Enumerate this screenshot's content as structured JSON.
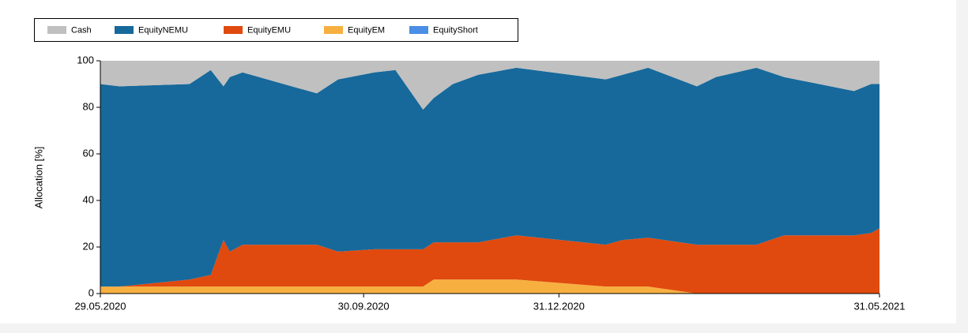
{
  "chart_data": {
    "type": "stacked_area",
    "y_label": "Allocation [%]",
    "x": [
      "29.05.2020",
      "07.06.2020",
      "10.07.2020",
      "20.07.2020",
      "26.07.2020",
      "29.07.2020",
      "04.08.2020",
      "08.09.2020",
      "18.09.2020",
      "05.10.2020",
      "15.10.2020",
      "28.10.2020",
      "02.11.2020",
      "11.11.2020",
      "23.11.2020",
      "11.12.2020",
      "22.01.2021",
      "30.01.2021",
      "11.02.2021",
      "06.03.2021",
      "15.03.2021",
      "03.04.2021",
      "16.04.2021",
      "19.05.2021",
      "27.05.2021",
      "31.05.2021"
    ],
    "series": [
      {
        "name": "Cash",
        "color": "#c0c0c0",
        "values": [
          10,
          11,
          10,
          4,
          11,
          7,
          5,
          14,
          8,
          5,
          4,
          21,
          16,
          10,
          6,
          3,
          8,
          6,
          3,
          11,
          7,
          3,
          7,
          13,
          10,
          10
        ]
      },
      {
        "name": "EquityNEMU",
        "color": "#17699b",
        "values": [
          87,
          86,
          84,
          88,
          66,
          75,
          74,
          65,
          74,
          76,
          77,
          60,
          62,
          68,
          72,
          72,
          71,
          71,
          73,
          68,
          72,
          76,
          68,
          62,
          64,
          62
        ]
      },
      {
        "name": "EquityEMU",
        "color": "#e04a0e",
        "values": [
          0,
          0,
          3,
          5,
          20,
          15,
          18,
          18,
          15,
          16,
          16,
          16,
          16,
          16,
          16,
          19,
          18,
          20,
          21,
          21,
          21,
          21,
          25,
          25,
          26,
          28
        ]
      },
      {
        "name": "EquityEM",
        "color": "#f7b040",
        "values": [
          3,
          3,
          3,
          3,
          3,
          3,
          3,
          3,
          3,
          3,
          3,
          3,
          6,
          6,
          6,
          6,
          3,
          3,
          3,
          0,
          0,
          0,
          0,
          0,
          0,
          0
        ]
      },
      {
        "name": "EquityShort",
        "color": "#4a8ee6",
        "values": [
          0,
          0,
          0,
          0,
          0,
          0,
          0,
          0,
          0,
          0,
          0,
          0,
          0,
          0,
          0,
          0,
          0,
          0,
          0,
          0,
          0,
          0,
          0,
          0,
          0,
          0
        ]
      }
    ],
    "xlim": [
      "29.05.2020",
      "31.05.2021"
    ],
    "xticks": [
      "29.05.2020",
      "30.09.2020",
      "31.12.2020",
      "31.05.2021"
    ],
    "ylim": [
      0,
      100
    ],
    "yticks": [
      0,
      20,
      40,
      60,
      80,
      100
    ]
  }
}
